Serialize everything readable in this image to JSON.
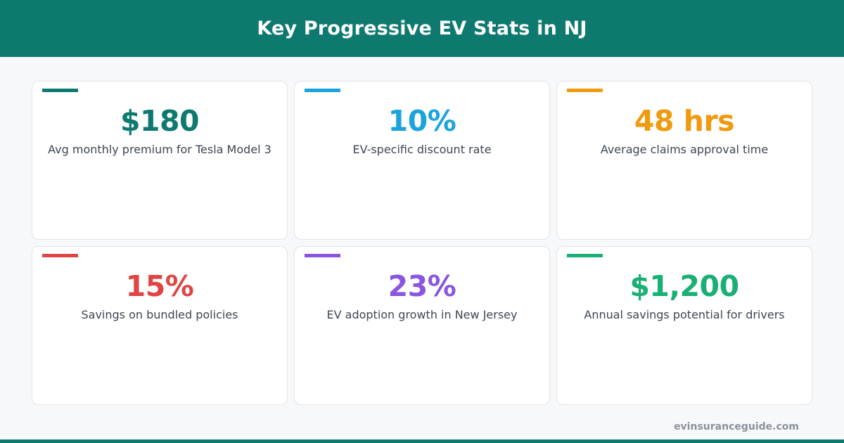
{
  "header": {
    "title": "Key Progressive EV Stats in NJ"
  },
  "stats": [
    {
      "value": "$180",
      "label": "Avg monthly premium for Tesla Model 3",
      "color": "#0e7a6f"
    },
    {
      "value": "10%",
      "label": "EV-specific discount rate",
      "color": "#1aa3dd"
    },
    {
      "value": "48 hrs",
      "label": "Average claims approval time",
      "color": "#f09a0e"
    },
    {
      "value": "15%",
      "label": "Savings on bundled policies",
      "color": "#e04545"
    },
    {
      "value": "23%",
      "label": "EV adoption growth in New Jersey",
      "color": "#8a55e0"
    },
    {
      "value": "$1,200",
      "label": "Annual savings potential for drivers",
      "color": "#1aaf74"
    }
  ],
  "footer": {
    "url": "evinsuranceguide.com"
  }
}
